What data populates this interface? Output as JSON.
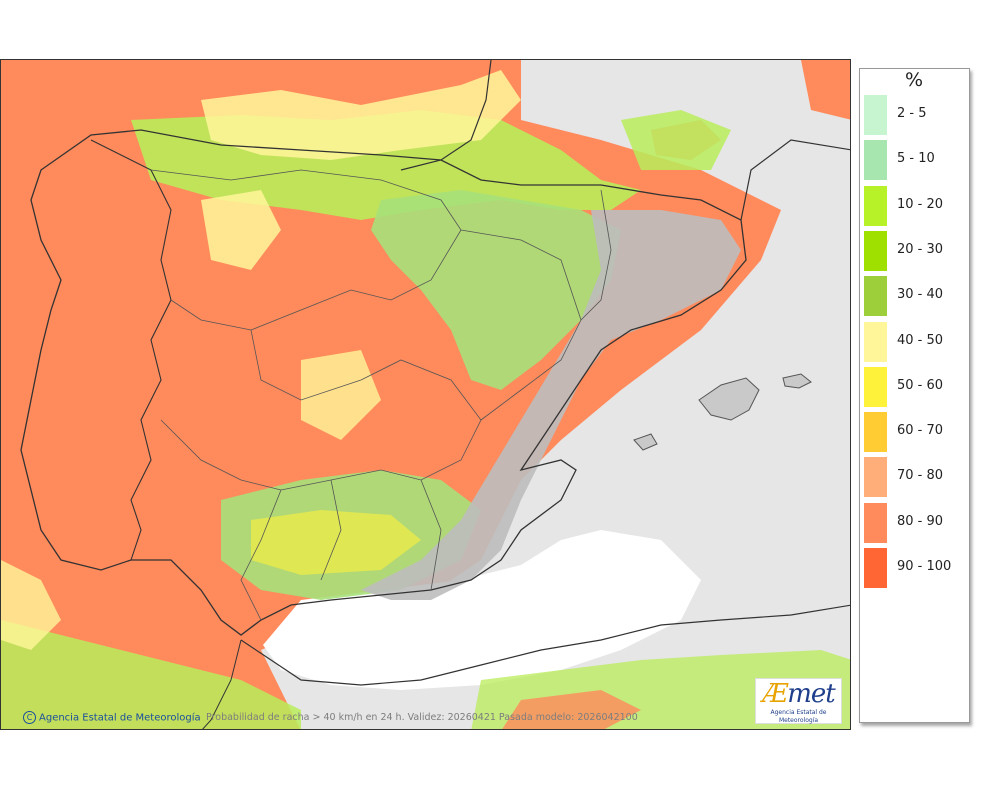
{
  "legend": {
    "title": "%",
    "items": [
      {
        "label": "2 - 5",
        "color": "#c7f5cf"
      },
      {
        "label": "5 - 10",
        "color": "#a8e6b0"
      },
      {
        "label": "10 - 20",
        "color": "#b6f227"
      },
      {
        "label": "20 - 30",
        "color": "#9fe000"
      },
      {
        "label": "30 - 40",
        "color": "#9ccf3a"
      },
      {
        "label": "40 - 50",
        "color": "#fff69a"
      },
      {
        "label": "50 - 60",
        "color": "#fff23a"
      },
      {
        "label": "60 - 70",
        "color": "#ffcc33"
      },
      {
        "label": "70 - 80",
        "color": "#ffae7a"
      },
      {
        "label": "80 - 90",
        "color": "#ff8a5c"
      },
      {
        "label": "90 - 100",
        "color": "#ff6633"
      }
    ]
  },
  "map": {
    "credit": "Agencia Estatal de Meteorología",
    "caption": "Probabilidad de racha > 40 km/h en 24 h. Validez: 20260421 Pasada modelo: 2026042100",
    "logo": {
      "mark_ae": "Æ",
      "mark_rest": "met",
      "subtitle": "Agencia Estatal de Meteorología"
    },
    "colors": {
      "sea_no_data": "#e8e8e8",
      "high_probability": "#ff8a5c",
      "relief_gray": "#bdbdbd"
    }
  }
}
